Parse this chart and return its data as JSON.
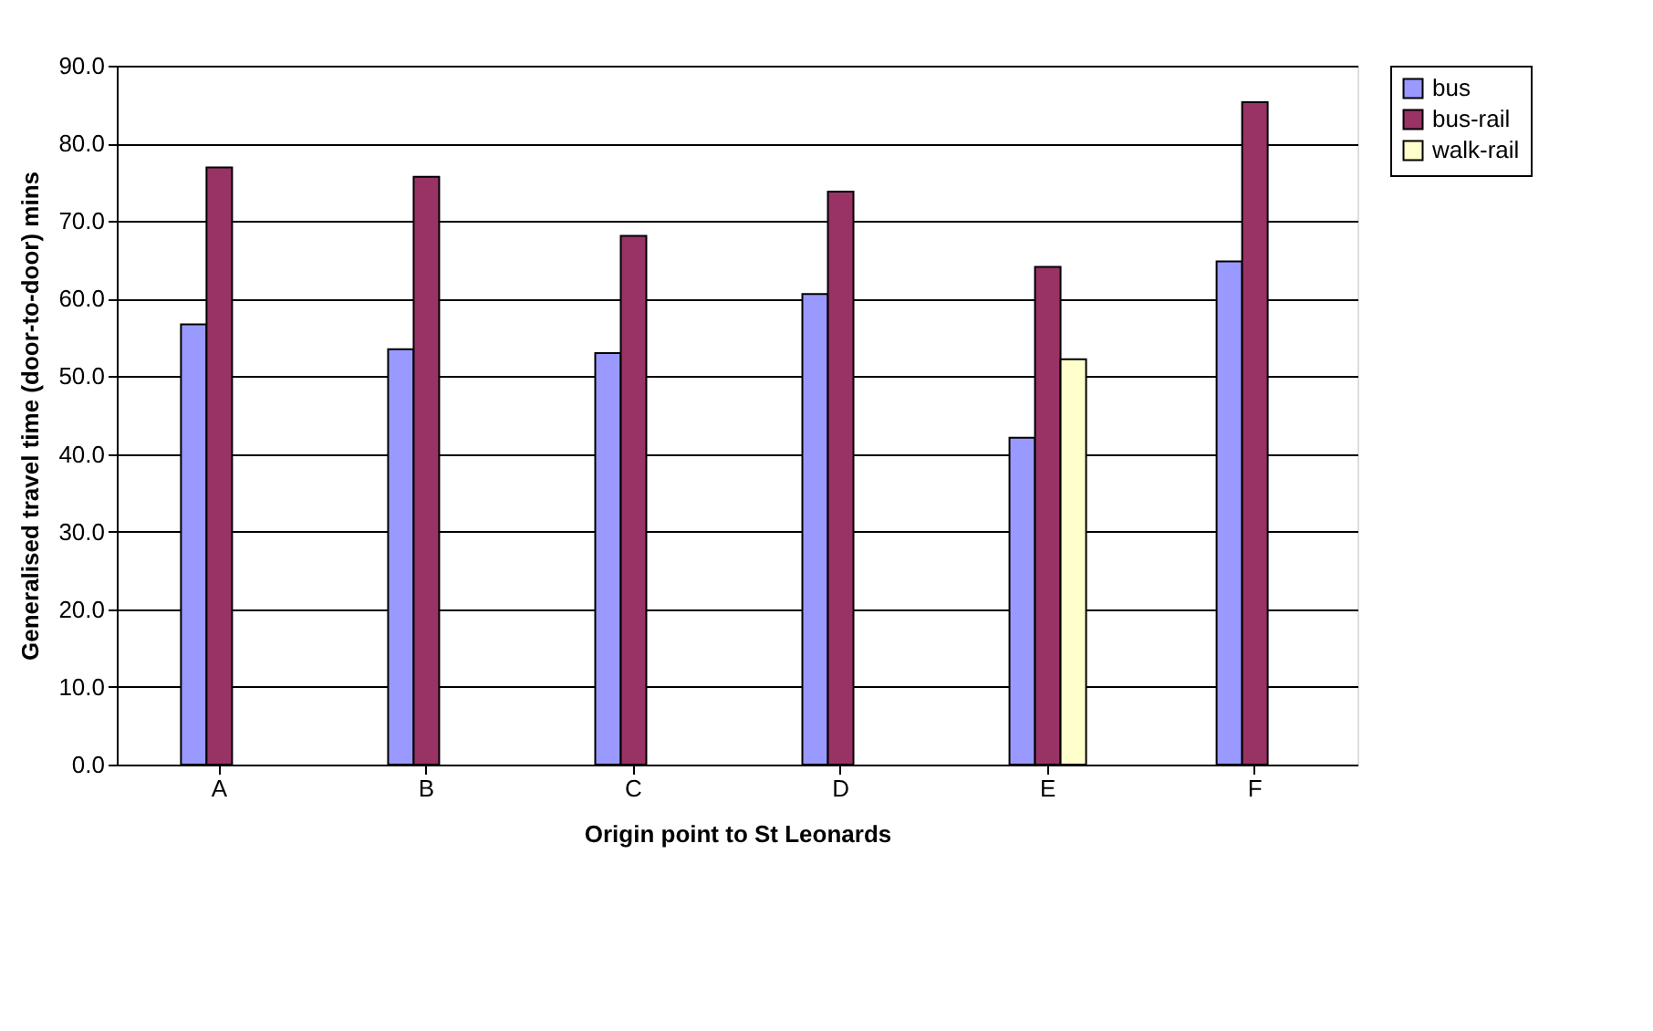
{
  "chart_data": {
    "type": "bar",
    "xlabel": "Origin point to St Leonards",
    "ylabel": "Generalised travel time (door-to-door) mins",
    "categories": [
      "A",
      "B",
      "C",
      "D",
      "E",
      "F"
    ],
    "series": [
      {
        "name": "bus",
        "color": "#9999ff",
        "values": [
          56.7,
          53.5,
          53.0,
          60.6,
          42.1,
          64.8
        ]
      },
      {
        "name": "bus-rail",
        "color": "#993366",
        "values": [
          76.9,
          75.7,
          68.1,
          73.8,
          64.1,
          85.3
        ]
      },
      {
        "name": "walk-rail",
        "color": "#ffffcc",
        "values": [
          null,
          null,
          null,
          null,
          52.2,
          null
        ]
      }
    ],
    "ylim": [
      0,
      90
    ],
    "yticks": [
      {
        "value": 0,
        "label": "0.0"
      },
      {
        "value": 10,
        "label": "10.0"
      },
      {
        "value": 20,
        "label": "20.0"
      },
      {
        "value": 30,
        "label": "30.0"
      },
      {
        "value": 40,
        "label": "40.0"
      },
      {
        "value": 50,
        "label": "50.0"
      },
      {
        "value": 60,
        "label": "60.0"
      },
      {
        "value": 70,
        "label": "70.0"
      },
      {
        "value": 80,
        "label": "80.0"
      },
      {
        "value": 90,
        "label": "90.0"
      }
    ],
    "grid": "y",
    "legend": "right"
  }
}
